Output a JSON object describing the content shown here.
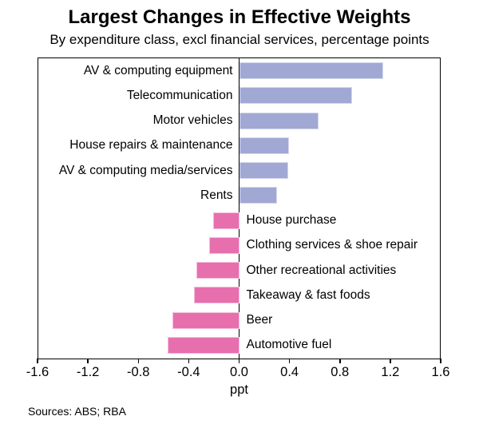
{
  "header": {
    "title": "Largest Changes in Effective Weights",
    "subtitle": "By expenditure class, excl financial services, percentage points"
  },
  "chart_data": {
    "type": "bar",
    "orientation": "horizontal",
    "title": "Largest Changes in Effective Weights",
    "subtitle": "By expenditure class, excl financial services, percentage points",
    "categories": [
      "AV & computing equipment",
      "Telecommunication",
      "Motor vehicles",
      "House repairs & maintenance",
      "AV & computing media/services",
      "Rents",
      "House purchase",
      "Clothing services & shoe repair",
      "Other recreational activities",
      "Takeaway & fast foods",
      "Beer",
      "Automotive fuel"
    ],
    "values": [
      1.15,
      0.9,
      0.63,
      0.4,
      0.39,
      0.3,
      -0.21,
      -0.24,
      -0.34,
      -0.36,
      -0.53,
      -0.57
    ],
    "xlabel": "ppt",
    "xlim": [
      -1.6,
      1.6
    ],
    "xticks": [
      "-1.6",
      "-1.2",
      "-0.8",
      "-0.4",
      "0.0",
      "0.4",
      "0.8",
      "1.2",
      "1.6"
    ],
    "grid": false,
    "legend": "none",
    "positive_color": "#a1a8d4",
    "negative_color": "#e76fae",
    "axis_color": "#000000"
  },
  "footer": {
    "sources": "Sources: ABS; RBA"
  }
}
